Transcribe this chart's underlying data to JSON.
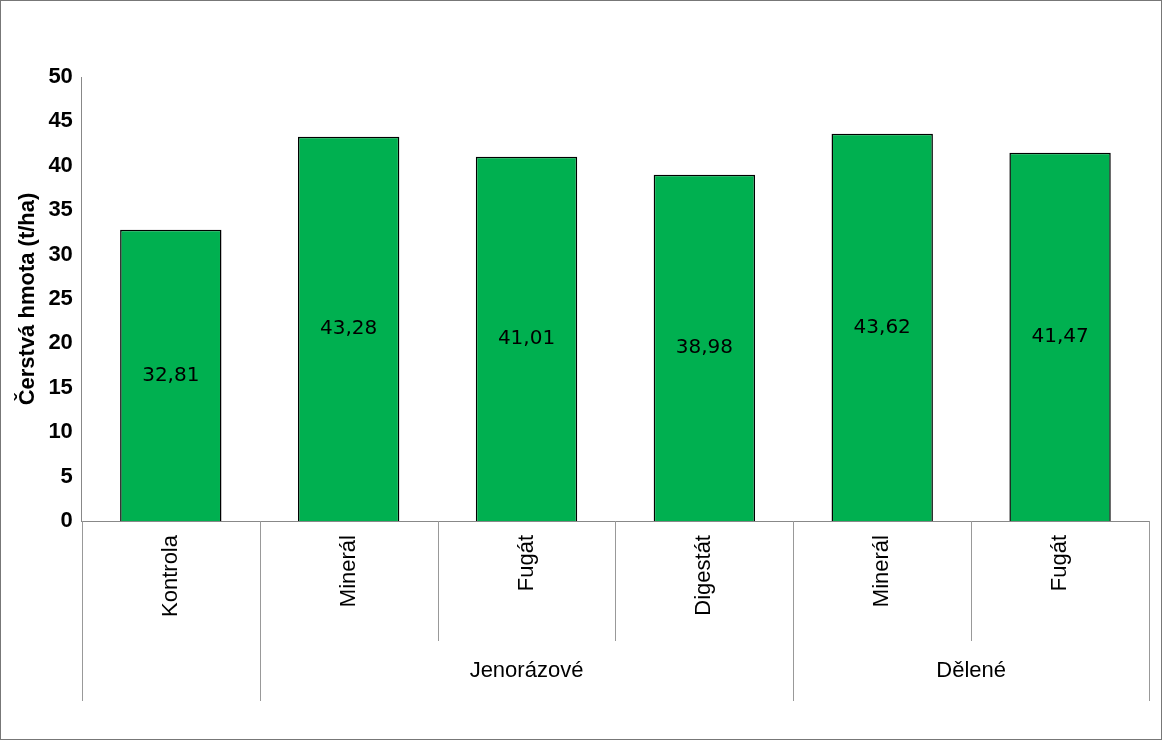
{
  "chart_data": {
    "type": "bar",
    "categories": [
      "Kontrola",
      "Minerál",
      "Fugát",
      "Digestát",
      "Minerál",
      "Fugát"
    ],
    "values": [
      32.81,
      43.28,
      41.01,
      38.98,
      43.62,
      41.47
    ],
    "value_labels": [
      "32,81",
      "43,28",
      "41,01",
      "38,98",
      "43,62",
      "41,47"
    ],
    "color": "#00b050",
    "ylabel": "Čerstvá hmota (t/ha)",
    "ylim": [
      0,
      50
    ],
    "yticks": [
      0,
      5,
      10,
      15,
      20,
      25,
      30,
      35,
      40,
      45,
      50
    ],
    "grid": false,
    "legend": false,
    "annotations": [
      "Jenorázové",
      "Dělené"
    ]
  }
}
